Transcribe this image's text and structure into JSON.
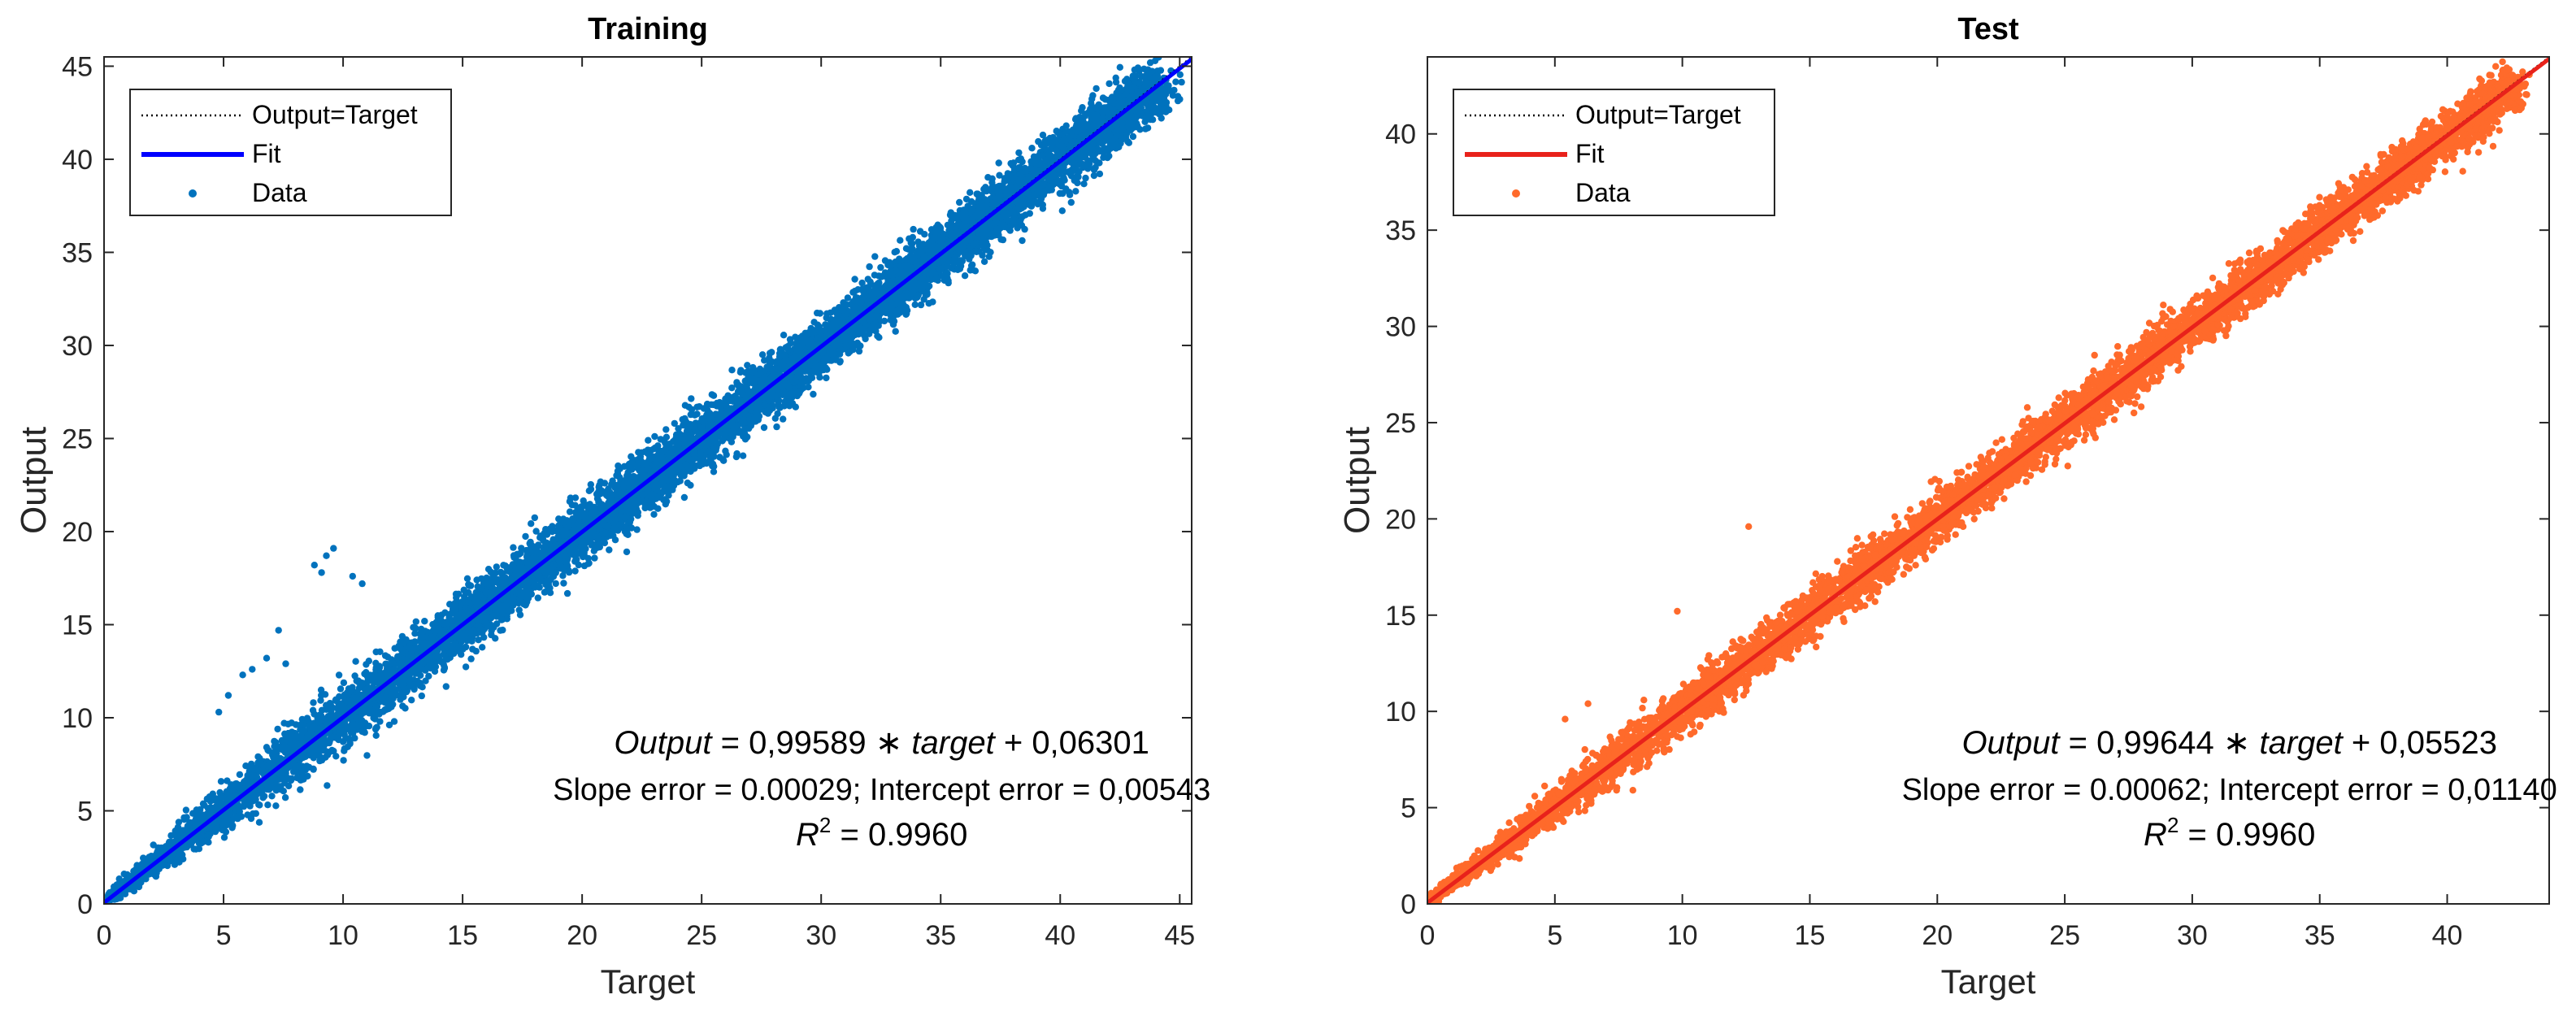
{
  "chart_data": [
    {
      "type": "scatter",
      "title": "Training",
      "xlabel": "Target",
      "ylabel": "Output",
      "xlim": [
        0,
        45.5
      ],
      "ylim": [
        0,
        45.5
      ],
      "xticks": [
        0,
        5,
        10,
        15,
        20,
        25,
        30,
        35,
        40,
        45
      ],
      "yticks": [
        0,
        5,
        10,
        15,
        20,
        25,
        30,
        35,
        40,
        45
      ],
      "fit": {
        "slope": 0.99589,
        "intercept": 0.06301
      },
      "spread": 0.9,
      "outliers": [
        [
          8.8,
          18.2
        ],
        [
          9.3,
          18.7
        ],
        [
          9.6,
          19.1
        ],
        [
          10.4,
          17.6
        ],
        [
          10.8,
          17.2
        ],
        [
          7.3,
          14.7
        ],
        [
          6.2,
          12.6
        ],
        [
          5.8,
          12.3
        ],
        [
          7.6,
          12.9
        ],
        [
          6.8,
          13.2
        ],
        [
          5.2,
          11.2
        ],
        [
          4.8,
          10.3
        ],
        [
          9.1,
          17.8
        ]
      ],
      "colors": {
        "data": "#0072BD",
        "fit": "#0000FF",
        "identity": "#000000"
      },
      "legend": {
        "position": "top-left",
        "entries": [
          "Output=Target",
          "Fit",
          "Data"
        ]
      },
      "annotations": {
        "equation": {
          "lhs": "Output",
          "coef": "0,99589",
          "var": "target",
          "intercept": "0,06301"
        },
        "errors": "Slope error = 0.00029; Intercept error = 0,00543",
        "r2": "0.9960"
      }
    },
    {
      "type": "scatter",
      "title": "Test",
      "xlabel": "Target",
      "ylabel": "Output",
      "xlim": [
        0,
        44
      ],
      "ylim": [
        0,
        44
      ],
      "xticks": [
        0,
        5,
        10,
        15,
        20,
        25,
        30,
        35,
        40
      ],
      "yticks": [
        0,
        5,
        10,
        15,
        20,
        25,
        30,
        35,
        40
      ],
      "fit": {
        "slope": 0.99644,
        "intercept": 0.05523
      },
      "spread": 0.75,
      "outliers": [
        [
          12.6,
          19.6
        ],
        [
          9.8,
          15.2
        ],
        [
          5.4,
          9.6
        ],
        [
          6.3,
          10.4
        ]
      ],
      "colors": {
        "data": "#FF6A2B",
        "fit": "#E8221B",
        "identity": "#000000"
      },
      "legend": {
        "position": "top-left",
        "entries": [
          "Output=Target",
          "Fit",
          "Data"
        ]
      },
      "annotations": {
        "equation": {
          "lhs": "Output",
          "coef": "0,99644",
          "var": "target",
          "intercept": "0,05523"
        },
        "errors": "Slope error = 0.00062; Intercept error = 0,01140",
        "r2": "0.9960"
      }
    }
  ]
}
